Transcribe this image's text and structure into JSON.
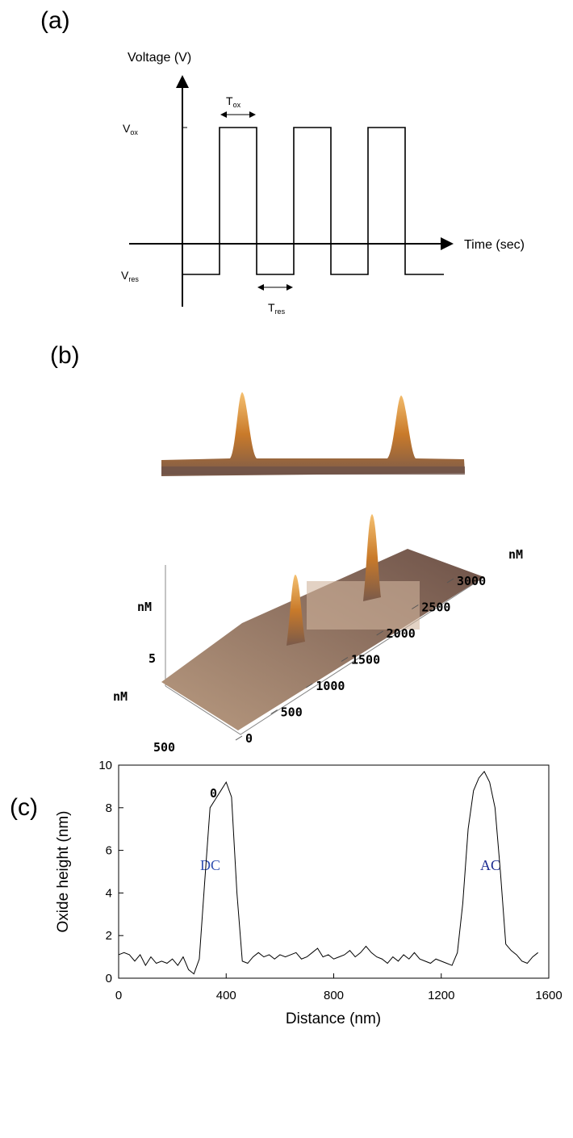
{
  "panel_a": {
    "label": "(a)",
    "y_axis_label": "Voltage (V)",
    "x_axis_label": "Time (sec)",
    "v_ox": {
      "main": "V",
      "sub": "ox"
    },
    "v_res": {
      "main": "V",
      "sub": "res"
    },
    "t_ox": {
      "main": "T",
      "sub": "ox"
    },
    "t_res": {
      "main": "T",
      "sub": "res"
    }
  },
  "panel_b": {
    "label": "(b)",
    "unit": "nM",
    "x_ticks": [
      0,
      500,
      1000,
      1500,
      2000,
      2500,
      3000
    ],
    "y_ticks": [
      0,
      500
    ],
    "z_ticks": [
      5
    ]
  },
  "chart_data": {
    "type": "line",
    "label": "(c)",
    "annotations": [
      "DC",
      "AC"
    ],
    "x_label": "Distance (nm)",
    "y_label": "Oxide height (nm)",
    "color": "#000000",
    "xlim": [
      0,
      1600
    ],
    "ylim": [
      0,
      10
    ],
    "xticks": [
      0,
      400,
      800,
      1200,
      1600
    ],
    "yticks": [
      0,
      2,
      4,
      6,
      8,
      10
    ],
    "x": [
      0,
      20,
      40,
      60,
      80,
      100,
      120,
      140,
      160,
      180,
      200,
      220,
      240,
      260,
      280,
      300,
      320,
      340,
      360,
      380,
      400,
      420,
      440,
      460,
      480,
      500,
      520,
      540,
      560,
      580,
      600,
      620,
      640,
      660,
      680,
      700,
      720,
      740,
      760,
      780,
      800,
      820,
      840,
      860,
      880,
      900,
      920,
      940,
      960,
      980,
      1000,
      1020,
      1040,
      1060,
      1080,
      1100,
      1120,
      1140,
      1160,
      1180,
      1200,
      1220,
      1240,
      1260,
      1280,
      1300,
      1320,
      1340,
      1360,
      1380,
      1400,
      1420,
      1440,
      1460,
      1480,
      1500,
      1520,
      1540,
      1560
    ],
    "values": [
      1.1,
      1.2,
      1.1,
      0.8,
      1.1,
      0.6,
      1.0,
      0.7,
      0.8,
      0.7,
      0.9,
      0.6,
      1.0,
      0.4,
      0.2,
      0.9,
      4.5,
      8.0,
      8.4,
      8.8,
      9.2,
      8.5,
      4.0,
      0.8,
      0.7,
      1.0,
      1.2,
      1.0,
      1.1,
      0.9,
      1.1,
      1.0,
      1.1,
      1.2,
      0.9,
      1.0,
      1.2,
      1.4,
      1.0,
      1.1,
      0.9,
      1.0,
      1.1,
      1.3,
      1.0,
      1.2,
      1.5,
      1.2,
      1.0,
      0.9,
      0.7,
      1.0,
      0.8,
      1.1,
      0.9,
      1.2,
      0.9,
      0.8,
      0.7,
      0.9,
      0.8,
      0.7,
      0.6,
      1.2,
      3.5,
      7.0,
      8.8,
      9.4,
      9.7,
      9.2,
      8.0,
      5.0,
      1.6,
      1.3,
      1.1,
      0.8,
      0.7,
      1.0,
      1.2
    ]
  }
}
